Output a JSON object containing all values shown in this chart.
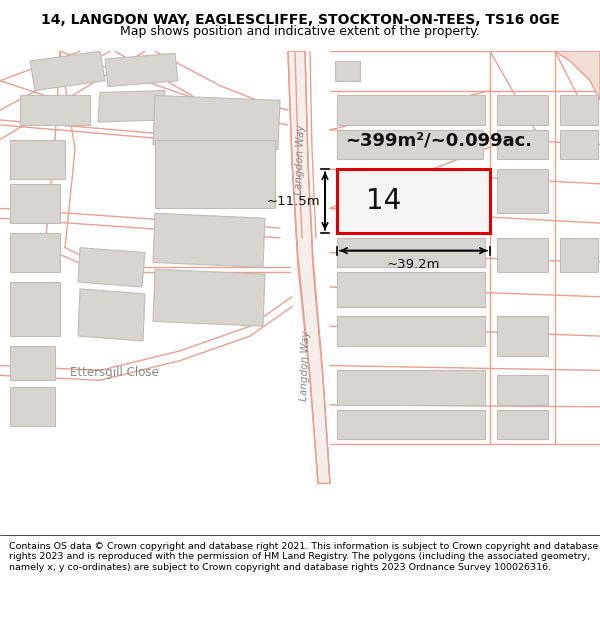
{
  "title_line1": "14, LANGDON WAY, EAGLESCLIFFE, STOCKTON-ON-TEES, TS16 0GE",
  "title_line2": "Map shows position and indicative extent of the property.",
  "footer_text": "Contains OS data © Crown copyright and database right 2021. This information is subject to Crown copyright and database rights 2023 and is reproduced with the permission of HM Land Registry. The polygons (including the associated geometry, namely x, y co-ordinates) are subject to Crown copyright and database rights 2023 Ordnance Survey 100026316.",
  "map_bg": "#ffffff",
  "road_color": "#e8a090",
  "building_fill": "#d8d4d0",
  "building_stroke": "#c0bcb8",
  "highlight_fill": "#f0f0f0",
  "highlight_stroke": "#dd0000",
  "area_text": "~399m²/~0.099ac.",
  "house_number": "14",
  "dim_width": "~39.2m",
  "dim_height": "~11.5m",
  "street_name_upper": "Langdon Way",
  "street_name_lower": "Langdon Way",
  "street_ettersgill": "Ettersgill Close",
  "title_fontsize": 10,
  "subtitle_fontsize": 9,
  "footer_fontsize": 6.8
}
